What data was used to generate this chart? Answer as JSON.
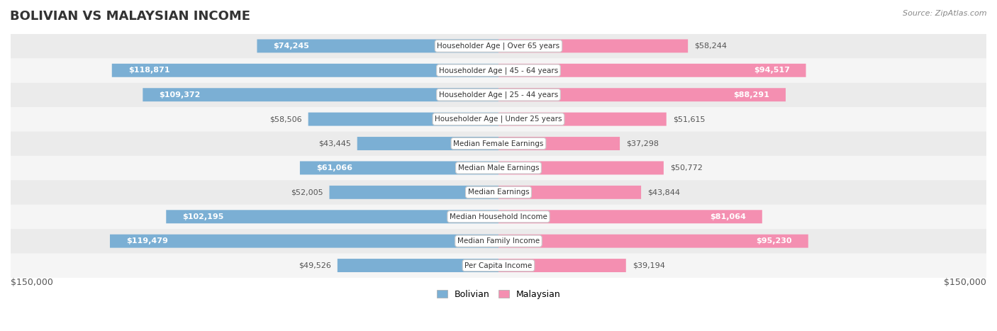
{
  "title": "BOLIVIAN VS MALAYSIAN INCOME",
  "source": "Source: ZipAtlas.com",
  "categories": [
    "Per Capita Income",
    "Median Family Income",
    "Median Household Income",
    "Median Earnings",
    "Median Male Earnings",
    "Median Female Earnings",
    "Householder Age | Under 25 years",
    "Householder Age | 25 - 44 years",
    "Householder Age | 45 - 64 years",
    "Householder Age | Over 65 years"
  ],
  "bolivian": [
    49526,
    119479,
    102195,
    52005,
    61066,
    43445,
    58506,
    109372,
    118871,
    74245
  ],
  "malaysian": [
    39194,
    95230,
    81064,
    43844,
    50772,
    37298,
    51615,
    88291,
    94517,
    58244
  ],
  "max_val": 150000,
  "color_bolivian": "#7bafd4",
  "color_malaysian": "#f48fb1",
  "color_bolivian_text_bg": "#5b9bc8",
  "color_malaysian_text_bg": "#ee6fa0",
  "bar_height": 0.55,
  "bg_row_color": "#f0f0f0",
  "bg_row_color2": "#e8e8e8",
  "label_box_color": "#ffffff",
  "label_box_edge": "#cccccc",
  "xlabel_left": "$150,000",
  "xlabel_right": "$150,000"
}
